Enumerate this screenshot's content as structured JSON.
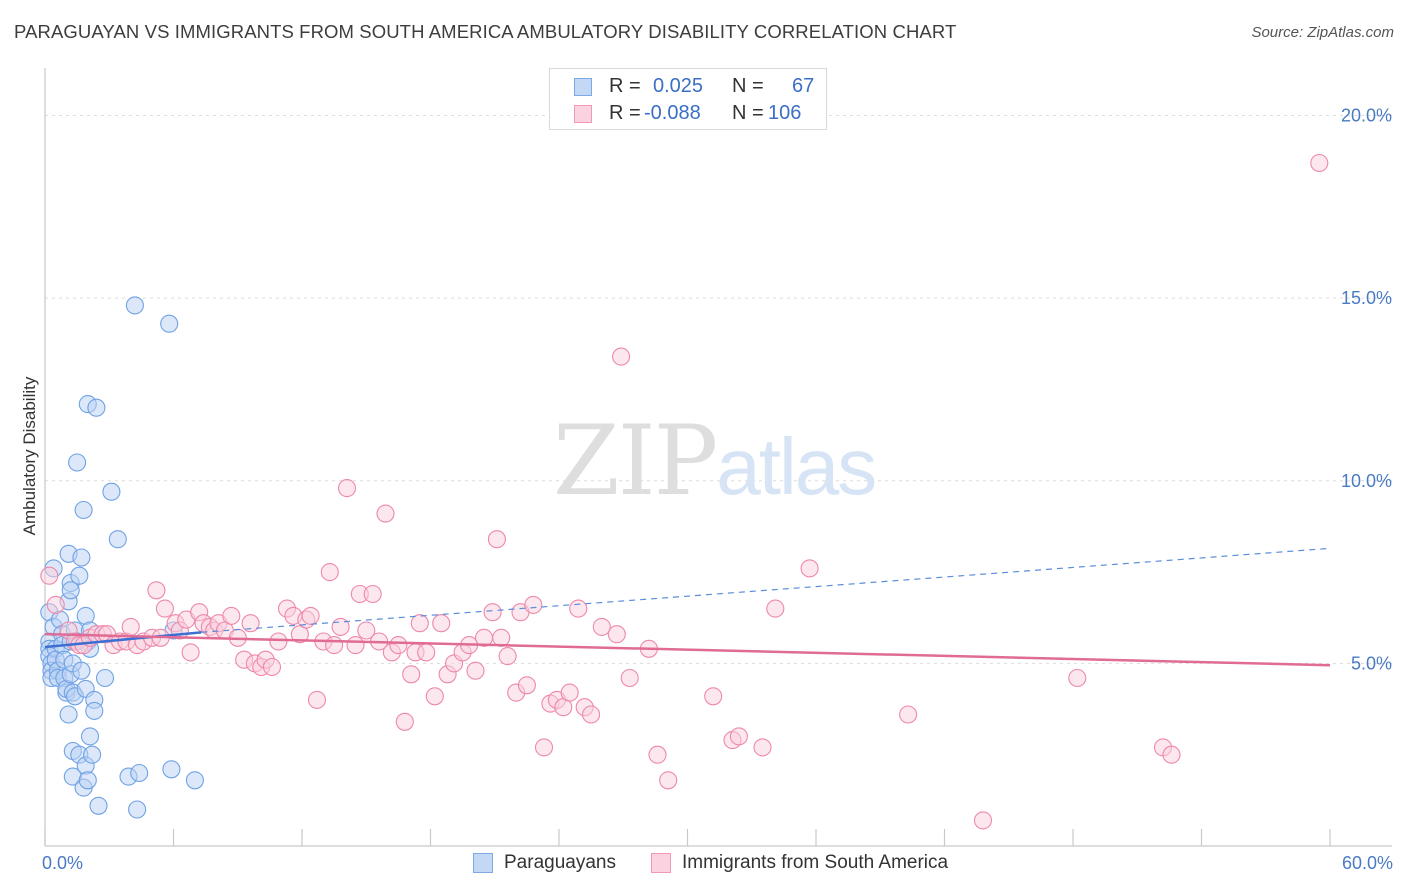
{
  "title": "PARAGUAYAN VS IMMIGRANTS FROM SOUTH AMERICA AMBULATORY DISABILITY CORRELATION CHART",
  "source": "Source: ZipAtlas.com",
  "watermark": {
    "zip": "ZIP",
    "atlas": "atlas"
  },
  "legend": {
    "rows": [
      {
        "r_label": "R =",
        "r_value": "0.025",
        "n_label": "N =",
        "n_value": "67",
        "color": "#8ab4ea"
      },
      {
        "r_label": "R =",
        "r_value": "-0.088",
        "n_label": "N =",
        "n_value": "106",
        "color": "#f4a6c0"
      }
    ]
  },
  "bottom_legend": [
    {
      "label": "Paraguayans",
      "color": "#8ab4ea"
    },
    {
      "label": "Immigrants from South America",
      "color": "#f4a6c0"
    }
  ],
  "chart_data": {
    "type": "scatter",
    "title": "PARAGUAYAN VS IMMIGRANTS FROM SOUTH AMERICA AMBULATORY DISABILITY CORRELATION CHART",
    "xlabel": "",
    "ylabel": "Ambulatory Disability",
    "xlim": [
      0,
      60
    ],
    "ylim": [
      0,
      21
    ],
    "x_tick_labels": [
      {
        "value": 0,
        "label": "0.0%"
      },
      {
        "value": 60,
        "label": "60.0%"
      }
    ],
    "y_tick_labels": [
      {
        "value": 5,
        "label": "5.0%"
      },
      {
        "value": 10,
        "label": "10.0%"
      },
      {
        "value": 15,
        "label": "15.0%"
      },
      {
        "value": 20,
        "label": "20.0%"
      }
    ],
    "grid": true,
    "series": [
      {
        "name": "Paraguayans",
        "color": "#6fa2e4",
        "fill": "#b9d2f3",
        "trend": {
          "x0": 0,
          "y0": 5.45,
          "x1": 7.3,
          "y1": 5.85,
          "dash_x1": 60,
          "dash_y1": 8.15
        },
        "points": [
          [
            0.2,
            6.4
          ],
          [
            0.2,
            5.6
          ],
          [
            0.2,
            5.4
          ],
          [
            0.2,
            5.2
          ],
          [
            0.3,
            5.0
          ],
          [
            0.3,
            4.8
          ],
          [
            0.3,
            4.6
          ],
          [
            0.4,
            7.6
          ],
          [
            0.4,
            6.0
          ],
          [
            0.5,
            5.4
          ],
          [
            0.5,
            5.1
          ],
          [
            0.6,
            4.8
          ],
          [
            0.6,
            4.6
          ],
          [
            0.7,
            6.2
          ],
          [
            0.8,
            5.8
          ],
          [
            0.8,
            5.5
          ],
          [
            0.9,
            5.1
          ],
          [
            0.9,
            4.6
          ],
          [
            1.0,
            4.2
          ],
          [
            1.0,
            4.3
          ],
          [
            1.1,
            8.0
          ],
          [
            1.1,
            6.7
          ],
          [
            1.1,
            3.6
          ],
          [
            1.2,
            7.2
          ],
          [
            1.2,
            7.0
          ],
          [
            1.2,
            5.6
          ],
          [
            1.2,
            4.7
          ],
          [
            1.3,
            4.2
          ],
          [
            1.3,
            5.0
          ],
          [
            1.3,
            2.6
          ],
          [
            1.3,
            1.9
          ],
          [
            1.4,
            5.9
          ],
          [
            1.4,
            5.6
          ],
          [
            1.4,
            4.1
          ],
          [
            1.5,
            5.6
          ],
          [
            1.5,
            10.5
          ],
          [
            1.6,
            7.4
          ],
          [
            1.6,
            2.5
          ],
          [
            1.7,
            7.9
          ],
          [
            1.7,
            4.8
          ],
          [
            1.8,
            9.2
          ],
          [
            1.8,
            1.6
          ],
          [
            1.9,
            6.3
          ],
          [
            1.9,
            4.3
          ],
          [
            1.9,
            2.2
          ],
          [
            2.0,
            1.8
          ],
          [
            2.0,
            5.6
          ],
          [
            2.0,
            12.1
          ],
          [
            2.1,
            3.0
          ],
          [
            2.1,
            5.9
          ],
          [
            2.1,
            5.4
          ],
          [
            2.2,
            2.5
          ],
          [
            2.3,
            4.0
          ],
          [
            2.3,
            3.7
          ],
          [
            2.4,
            12.0
          ],
          [
            2.5,
            1.1
          ],
          [
            2.8,
            4.6
          ],
          [
            3.1,
            9.7
          ],
          [
            3.4,
            8.4
          ],
          [
            3.9,
            1.9
          ],
          [
            4.2,
            14.8
          ],
          [
            4.3,
            1.0
          ],
          [
            4.4,
            2.0
          ],
          [
            5.8,
            14.3
          ],
          [
            5.9,
            2.1
          ],
          [
            6.0,
            5.9
          ],
          [
            7.0,
            1.8
          ]
        ]
      },
      {
        "name": "Immigrants from South America",
        "color": "#ee88aa",
        "fill": "#f9cfdd",
        "trend": {
          "x0": 0,
          "y0": 5.8,
          "x1": 60,
          "y1": 4.95
        },
        "points": [
          [
            0.2,
            7.4
          ],
          [
            0.5,
            6.6
          ],
          [
            1.1,
            5.9
          ],
          [
            1.4,
            5.6
          ],
          [
            1.6,
            5.5
          ],
          [
            1.8,
            5.5
          ],
          [
            2.1,
            5.7
          ],
          [
            2.4,
            5.8
          ],
          [
            2.7,
            5.8
          ],
          [
            2.9,
            5.8
          ],
          [
            3.2,
            5.5
          ],
          [
            3.5,
            5.6
          ],
          [
            3.8,
            5.6
          ],
          [
            4.0,
            6.0
          ],
          [
            4.3,
            5.5
          ],
          [
            4.6,
            5.6
          ],
          [
            5.0,
            5.7
          ],
          [
            5.2,
            7.0
          ],
          [
            5.4,
            5.7
          ],
          [
            5.6,
            6.5
          ],
          [
            6.1,
            6.1
          ],
          [
            6.3,
            5.9
          ],
          [
            6.6,
            6.2
          ],
          [
            6.8,
            5.3
          ],
          [
            7.2,
            6.4
          ],
          [
            7.4,
            6.1
          ],
          [
            7.7,
            6.0
          ],
          [
            7.9,
            5.9
          ],
          [
            8.1,
            6.1
          ],
          [
            8.4,
            5.9
          ],
          [
            8.7,
            6.3
          ],
          [
            9.0,
            5.7
          ],
          [
            9.3,
            5.1
          ],
          [
            9.6,
            6.1
          ],
          [
            9.8,
            5.0
          ],
          [
            10.1,
            4.9
          ],
          [
            10.3,
            5.1
          ],
          [
            10.6,
            4.9
          ],
          [
            10.9,
            5.6
          ],
          [
            11.3,
            6.5
          ],
          [
            11.6,
            6.3
          ],
          [
            11.9,
            5.8
          ],
          [
            12.2,
            6.2
          ],
          [
            12.4,
            6.3
          ],
          [
            12.7,
            4.0
          ],
          [
            13.0,
            5.6
          ],
          [
            13.3,
            7.5
          ],
          [
            13.5,
            5.5
          ],
          [
            13.8,
            6.0
          ],
          [
            14.1,
            9.8
          ],
          [
            14.5,
            5.5
          ],
          [
            14.7,
            6.9
          ],
          [
            15.0,
            5.9
          ],
          [
            15.3,
            6.9
          ],
          [
            15.6,
            5.6
          ],
          [
            15.9,
            9.1
          ],
          [
            16.2,
            5.3
          ],
          [
            16.5,
            5.5
          ],
          [
            16.8,
            3.4
          ],
          [
            17.1,
            4.7
          ],
          [
            17.3,
            5.3
          ],
          [
            17.5,
            6.1
          ],
          [
            17.8,
            5.3
          ],
          [
            18.2,
            4.1
          ],
          [
            18.5,
            6.1
          ],
          [
            18.8,
            4.7
          ],
          [
            19.1,
            5.0
          ],
          [
            19.5,
            5.3
          ],
          [
            19.8,
            5.5
          ],
          [
            20.1,
            4.8
          ],
          [
            20.5,
            5.7
          ],
          [
            20.9,
            6.4
          ],
          [
            21.1,
            8.4
          ],
          [
            21.3,
            5.7
          ],
          [
            21.6,
            5.2
          ],
          [
            22.0,
            4.2
          ],
          [
            22.2,
            6.4
          ],
          [
            22.5,
            4.4
          ],
          [
            22.8,
            6.6
          ],
          [
            23.3,
            2.7
          ],
          [
            23.6,
            3.9
          ],
          [
            23.9,
            4.0
          ],
          [
            24.2,
            3.8
          ],
          [
            24.5,
            4.2
          ],
          [
            24.9,
            6.5
          ],
          [
            25.2,
            3.8
          ],
          [
            25.5,
            3.6
          ],
          [
            26.0,
            6.0
          ],
          [
            26.7,
            5.8
          ],
          [
            26.9,
            13.4
          ],
          [
            27.3,
            4.6
          ],
          [
            28.2,
            5.4
          ],
          [
            28.6,
            2.5
          ],
          [
            29.1,
            1.8
          ],
          [
            31.2,
            4.1
          ],
          [
            32.1,
            2.9
          ],
          [
            32.4,
            3.0
          ],
          [
            33.5,
            2.7
          ],
          [
            34.1,
            6.5
          ],
          [
            35.7,
            7.6
          ],
          [
            40.3,
            3.6
          ],
          [
            43.8,
            0.7
          ],
          [
            48.2,
            4.6
          ],
          [
            52.2,
            2.7
          ],
          [
            52.6,
            2.5
          ],
          [
            59.5,
            18.7
          ]
        ]
      }
    ]
  }
}
